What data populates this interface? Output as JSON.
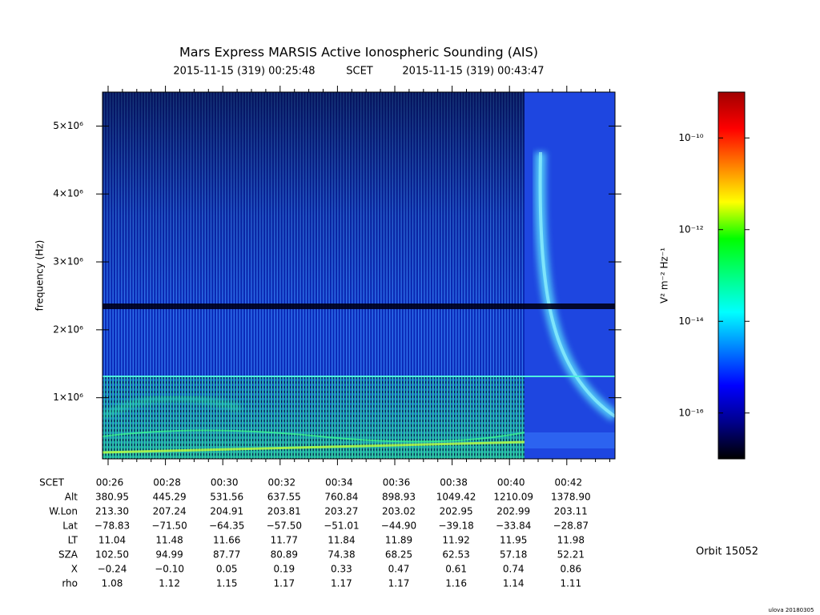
{
  "chart_data": {
    "type": "spectrogram",
    "title": "Mars Express MARSIS Active Ionospheric Sounding (AIS)",
    "subtitle_start": "2015-11-15 (319) 00:25:48",
    "subtitle_scet": "SCET",
    "subtitle_end": "2015-11-15 (319) 00:43:47",
    "ylabel": "frequency (Hz)",
    "ylim": [
      100000,
      5500000
    ],
    "yticks": [
      {
        "value": 1000000,
        "label": "1×10⁶"
      },
      {
        "value": 2000000,
        "label": "2×10⁶"
      },
      {
        "value": 3000000,
        "label": "3×10⁶"
      },
      {
        "value": 4000000,
        "label": "4×10⁶"
      },
      {
        "value": 5000000,
        "label": "5×10⁶"
      }
    ],
    "x_row_label": "SCET",
    "categories": [
      "00:26",
      "00:28",
      "00:30",
      "00:32",
      "00:34",
      "00:36",
      "00:38",
      "00:40",
      "00:42"
    ],
    "ephemeris": [
      {
        "name": "Alt",
        "values": [
          "380.95",
          "445.29",
          "531.56",
          "637.55",
          "760.84",
          "898.93",
          "1049.42",
          "1210.09",
          "1378.90"
        ]
      },
      {
        "name": "W.Lon",
        "values": [
          "213.30",
          "207.24",
          "204.91",
          "203.81",
          "203.27",
          "203.02",
          "202.95",
          "202.99",
          "203.11"
        ]
      },
      {
        "name": "Lat",
        "values": [
          "−78.83",
          "−71.50",
          "−64.35",
          "−57.50",
          "−51.01",
          "−44.90",
          "−39.18",
          "−33.84",
          "−28.87"
        ]
      },
      {
        "name": "LT",
        "values": [
          "11.04",
          "11.48",
          "11.66",
          "11.77",
          "11.84",
          "11.89",
          "11.92",
          "11.95",
          "11.98"
        ]
      },
      {
        "name": "SZA",
        "values": [
          "102.50",
          "94.99",
          "87.77",
          "80.89",
          "74.38",
          "68.25",
          "62.53",
          "57.18",
          "52.21"
        ]
      },
      {
        "name": "X",
        "values": [
          "−0.24",
          "−0.10",
          "0.05",
          "0.19",
          "0.33",
          "0.47",
          "0.61",
          "0.74",
          "0.86"
        ]
      },
      {
        "name": "rho",
        "values": [
          "1.08",
          "1.12",
          "1.15",
          "1.17",
          "1.17",
          "1.17",
          "1.16",
          "1.14",
          "1.11"
        ]
      }
    ],
    "colorbar": {
      "label": "V² m⁻² Hz⁻¹",
      "scale": "log",
      "clim": [
        1e-17,
        1e-09
      ],
      "ticks": [
        {
          "value": 1e-10,
          "label": "10⁻¹⁰"
        },
        {
          "value": 1e-12,
          "label": "10⁻¹²"
        },
        {
          "value": 1e-14,
          "label": "10⁻¹⁴"
        },
        {
          "value": 1e-16,
          "label": "10⁻¹⁶"
        }
      ],
      "colors": [
        "#000000",
        "#00008c",
        "#0000ff",
        "#0080ff",
        "#00ffff",
        "#00ff80",
        "#00ff00",
        "#ffff00",
        "#ff8000",
        "#ff0000",
        "#a00000"
      ]
    },
    "orbit": "Orbit 15052",
    "credit": "ulova 20180305"
  }
}
